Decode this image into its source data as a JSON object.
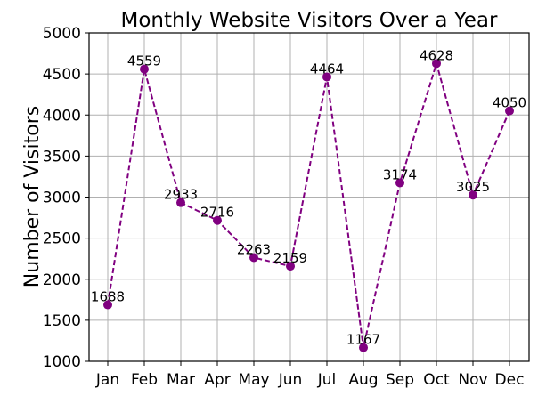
{
  "chart_data": {
    "type": "line",
    "title": "Monthly Website Visitors Over a Year",
    "xlabel": "",
    "ylabel": "Number of Visitors",
    "categories": [
      "Jan",
      "Feb",
      "Mar",
      "Apr",
      "May",
      "Jun",
      "Jul",
      "Aug",
      "Sep",
      "Oct",
      "Nov",
      "Dec"
    ],
    "values": [
      1688,
      4559,
      2933,
      2716,
      2263,
      2159,
      4464,
      1167,
      3174,
      4628,
      3025,
      4050
    ],
    "data_labels": [
      "1688",
      "4559",
      "2933",
      "2716",
      "2263",
      "2159",
      "4464",
      "1167",
      "3174",
      "4628",
      "3025",
      "4050"
    ],
    "ylim": [
      1000,
      5000
    ],
    "yticks": [
      1000,
      1500,
      2000,
      2500,
      3000,
      3500,
      4000,
      4500,
      5000
    ],
    "ytick_labels": [
      "1000",
      "1500",
      "2000",
      "2500",
      "3000",
      "3500",
      "4000",
      "4500",
      "5000"
    ],
    "grid": true,
    "line_style": "dashed",
    "marker": "circle",
    "color": "#800080"
  }
}
